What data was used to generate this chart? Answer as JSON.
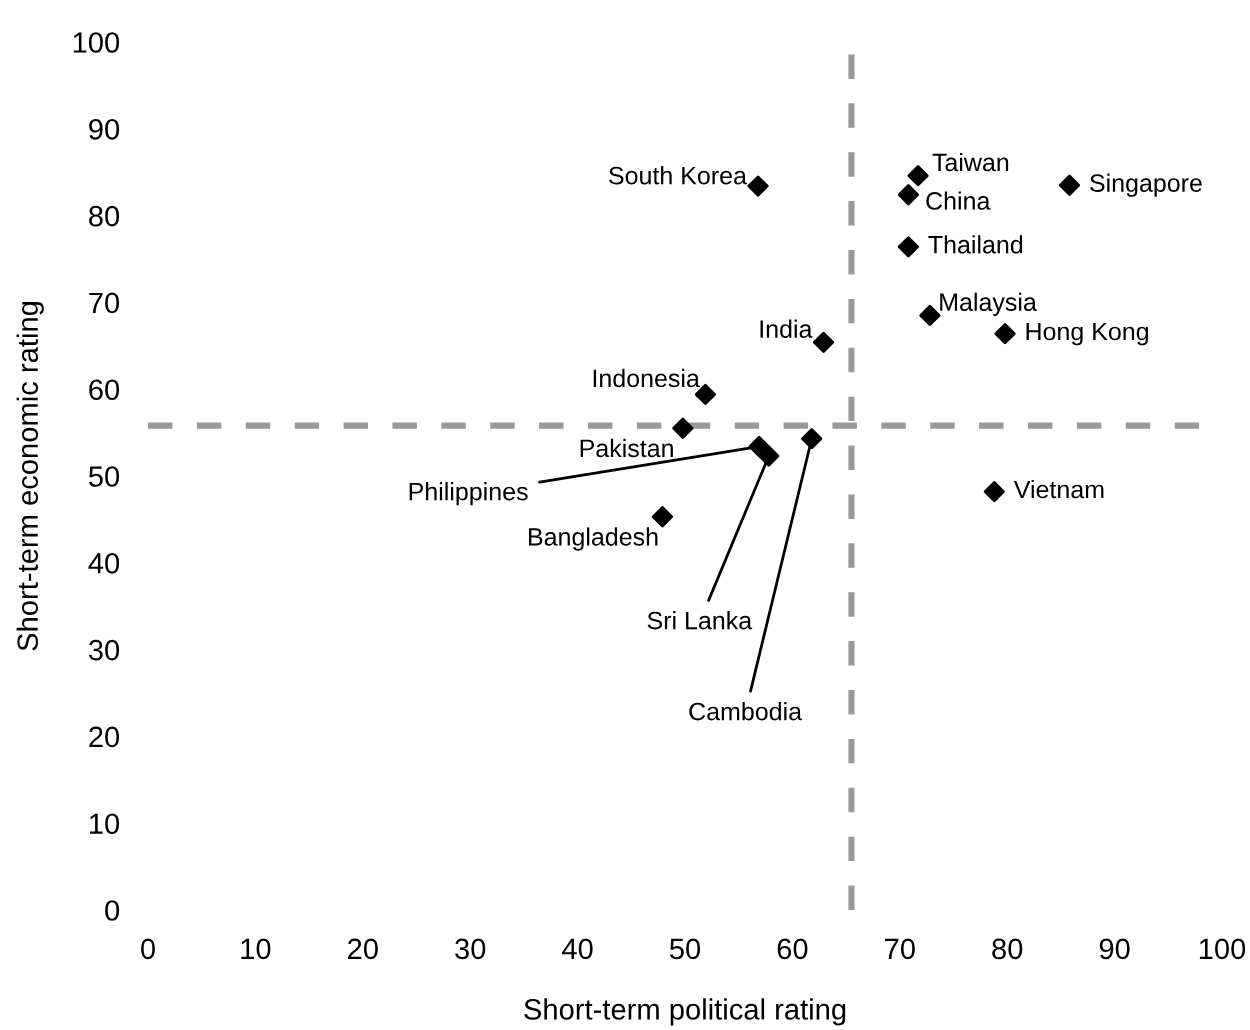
{
  "chart_data": {
    "type": "scatter",
    "xlabel": "Short-term political rating",
    "ylabel": "Short-term economic rating",
    "xlim": [
      0,
      100
    ],
    "ylim": [
      0,
      100
    ],
    "xticks": [
      0,
      10,
      20,
      30,
      40,
      50,
      60,
      70,
      80,
      90,
      100
    ],
    "yticks": [
      0,
      10,
      20,
      30,
      40,
      50,
      60,
      70,
      80,
      90,
      100
    ],
    "grid": false,
    "legend": false,
    "marker": "diamond",
    "series": [
      {
        "color": "#000000",
        "x": [
          56.8,
          71.7,
          70.8,
          85.8,
          70.8,
          72.8,
          79.8,
          62.9,
          51.9,
          49.8,
          56.9,
          57.8,
          61.8,
          47.9,
          78.8
        ],
        "values": [
          83.4,
          84.6,
          82.4,
          83.5,
          76.4,
          68.5,
          66.4,
          65.4,
          59.4,
          55.5,
          53.4,
          52.3,
          54.3,
          45.3,
          48.2
        ]
      }
    ],
    "annotations": [
      {
        "text": "South Korea",
        "x": 56.8,
        "y": 83.4
      },
      {
        "text": "Taiwan",
        "x": 71.7,
        "y": 84.6
      },
      {
        "text": "China",
        "x": 70.8,
        "y": 82.4
      },
      {
        "text": "Singapore",
        "x": 85.8,
        "y": 83.5
      },
      {
        "text": "Thailand",
        "x": 70.8,
        "y": 76.4
      },
      {
        "text": "Malaysia",
        "x": 72.8,
        "y": 68.5
      },
      {
        "text": "Hong Kong",
        "x": 79.8,
        "y": 66.4
      },
      {
        "text": "India",
        "x": 62.9,
        "y": 65.4
      },
      {
        "text": "Indonesia",
        "x": 51.9,
        "y": 59.4
      },
      {
        "text": "Pakistan",
        "x": 49.8,
        "y": 55.5
      },
      {
        "text": "Philippines",
        "x": 56.9,
        "y": 53.4
      },
      {
        "text": "Sri Lanka",
        "x": 57.8,
        "y": 52.3
      },
      {
        "text": "Cambodia",
        "x": 61.8,
        "y": 54.3
      },
      {
        "text": "Bangladesh",
        "x": 47.9,
        "y": 45.3
      },
      {
        "text": "Vietnam",
        "x": 78.8,
        "y": 48.2
      }
    ],
    "ref_lines": [
      {
        "axis": "x",
        "value": 65.5,
        "label": null,
        "color": "#999999",
        "line_style": "dashed"
      },
      {
        "axis": "y",
        "value": 55.8,
        "label": null,
        "color": "#999999",
        "line_style": "dashed"
      }
    ]
  }
}
